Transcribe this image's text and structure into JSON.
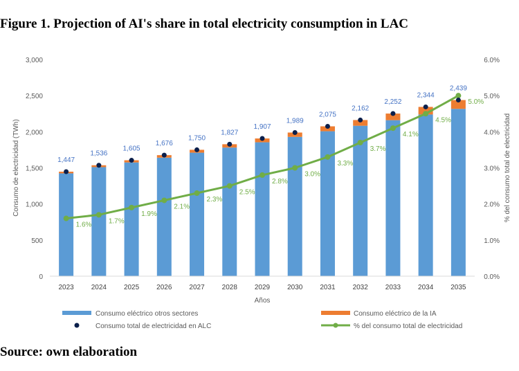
{
  "figure": {
    "title": "Figure 1. Projection of AI's share in total electricity consumption in LAC",
    "source": "Source: own elaboration"
  },
  "colors": {
    "other_sectors": "#5b9bd5",
    "ai": "#ed7d31",
    "total_marker": "#0b1f4b",
    "share_line": "#70ad47",
    "value_label": "#4472c4",
    "axis_text": "#595959",
    "grid": "#d9d9d9"
  },
  "chart_data": {
    "type": "bar",
    "categories": [
      "2023",
      "2024",
      "2025",
      "2026",
      "2027",
      "2028",
      "2029",
      "2030",
      "2031",
      "2032",
      "2033",
      "2034",
      "2035"
    ],
    "xlabel": "Años",
    "ylabel": "Consumo de electricidad (TWh)",
    "y2label": "% del consumo total de electricidad",
    "ylim": [
      0,
      3000
    ],
    "yticks": [
      "0",
      "500",
      "1,000",
      "1,500",
      "2,000",
      "2,500",
      "3,000"
    ],
    "y2lim": [
      0,
      6
    ],
    "y2ticks": [
      "0.0%",
      "1.0%",
      "2.0%",
      "3.0%",
      "4.0%",
      "5.0%",
      "6.0%"
    ],
    "grid": false,
    "legend_position": "bottom",
    "series": [
      {
        "name": "Consumo eléctrico otros sectores",
        "kind": "stacked-bar",
        "values": [
          1424,
          1510,
          1575,
          1641,
          1710,
          1781,
          1854,
          1929,
          2007,
          2083,
          2160,
          2239,
          2317
        ]
      },
      {
        "name": "Consumo eléctrico de la IA",
        "kind": "stacked-bar",
        "values": [
          23,
          26,
          30,
          35,
          40,
          46,
          53,
          60,
          68,
          79,
          92,
          105,
          122
        ]
      },
      {
        "name": "Consumo total de electricidad en ALC",
        "kind": "marker",
        "values": [
          1447,
          1536,
          1605,
          1676,
          1750,
          1827,
          1907,
          1989,
          2075,
          2162,
          2252,
          2344,
          2439
        ],
        "labels": [
          "1,447",
          "1,536",
          "1,605",
          "1,676",
          "1,750",
          "1,827",
          "1,907",
          "1,989",
          "2,075",
          "2,162",
          "2,252",
          "2,344",
          "2,439"
        ]
      },
      {
        "name": "% del consumo total de electricidad",
        "kind": "line",
        "axis": "right",
        "values": [
          1.6,
          1.7,
          1.9,
          2.1,
          2.3,
          2.5,
          2.8,
          3.0,
          3.3,
          3.7,
          4.1,
          4.5,
          5.0
        ],
        "labels": [
          "1.6%",
          "1.7%",
          "1.9%",
          "2.1%",
          "2.3%",
          "2.5%",
          "2.8%",
          "3.0%",
          "3.3%",
          "3.7%",
          "4.1%",
          "4.5%",
          "5.0%"
        ]
      }
    ]
  }
}
